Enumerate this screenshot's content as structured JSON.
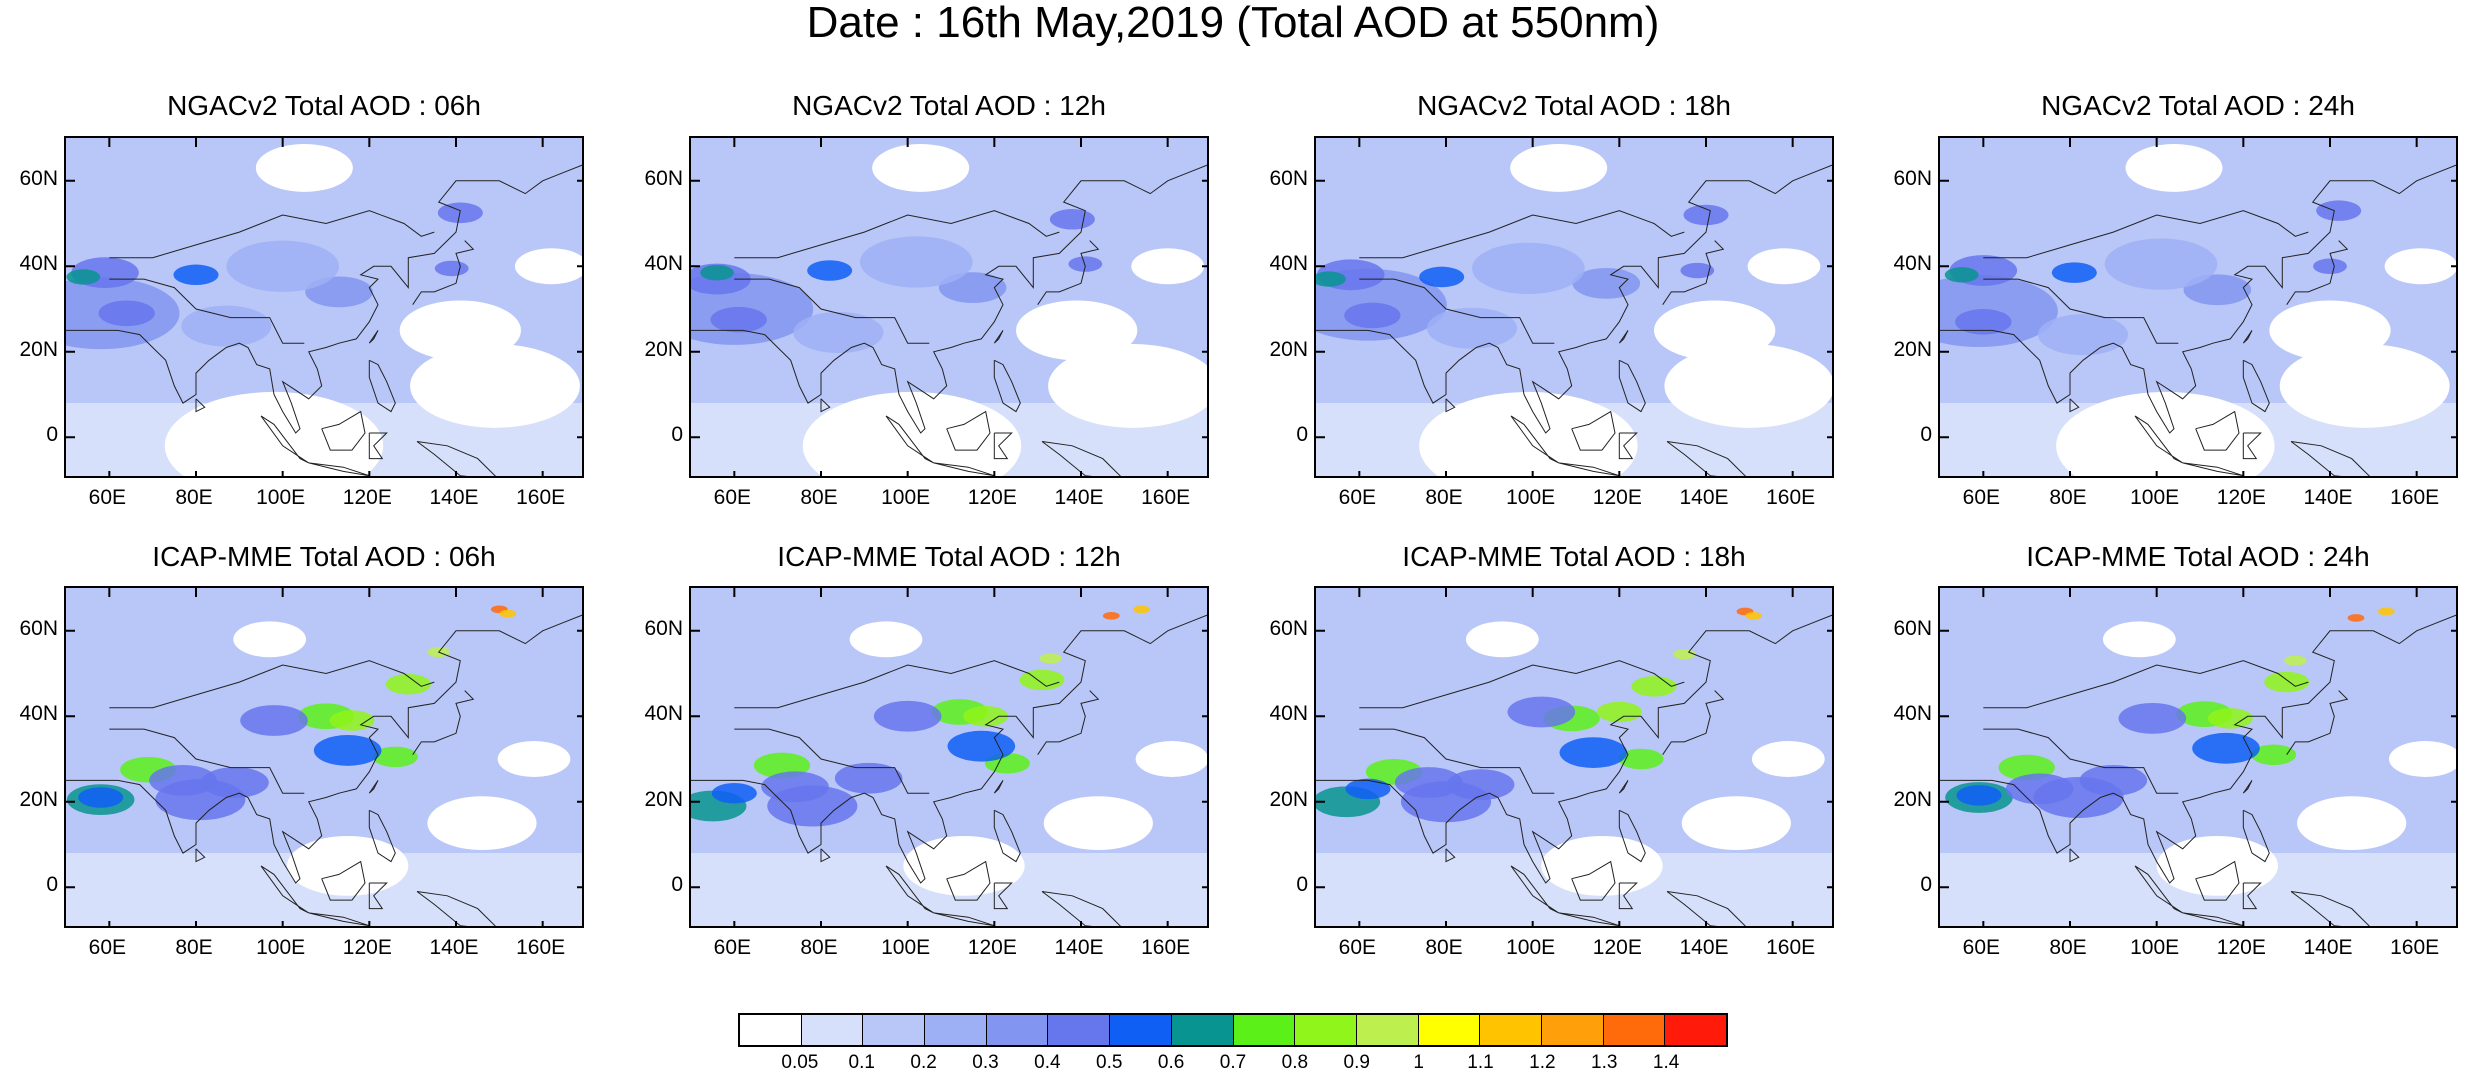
{
  "title": "Date : 16th May,2019 (Total AOD at 550nm)",
  "axes": {
    "lat_ticks": [
      "60N",
      "40N",
      "20N",
      "0"
    ],
    "lat_values": [
      60,
      40,
      20,
      0
    ],
    "lon_ticks": [
      "60E",
      "80E",
      "100E",
      "120E",
      "140E",
      "160E"
    ],
    "lon_values": [
      60,
      80,
      100,
      120,
      140,
      160
    ],
    "lon_range": [
      50,
      170
    ],
    "lat_range": [
      -10,
      70
    ]
  },
  "panels": [
    {
      "title": "NGACv2 Total AOD : 06h",
      "model": "NGACv2",
      "lead": "06h"
    },
    {
      "title": "NGACv2 Total AOD : 12h",
      "model": "NGACv2",
      "lead": "12h"
    },
    {
      "title": "NGACv2 Total AOD : 18h",
      "model": "NGACv2",
      "lead": "18h"
    },
    {
      "title": "NGACv2 Total AOD : 24h",
      "model": "NGACv2",
      "lead": "24h"
    },
    {
      "title": "ICAP-MME Total AOD : 06h",
      "model": "ICAP-MME",
      "lead": "06h"
    },
    {
      "title": "ICAP-MME Total AOD : 12h",
      "model": "ICAP-MME",
      "lead": "12h"
    },
    {
      "title": "ICAP-MME Total AOD : 18h",
      "model": "ICAP-MME",
      "lead": "18h"
    },
    {
      "title": "ICAP-MME Total AOD : 24h",
      "model": "ICAP-MME",
      "lead": "24h"
    }
  ],
  "colorbar": {
    "labels": [
      "0.05",
      "0.1",
      "0.2",
      "0.3",
      "0.4",
      "0.5",
      "0.6",
      "0.7",
      "0.8",
      "0.9",
      "1",
      "1.1",
      "1.2",
      "1.3",
      "1.4"
    ],
    "colors": [
      "#ffffff",
      "#d7e0fb",
      "#b9c6f8",
      "#9db0f5",
      "#8295f0",
      "#6676ec",
      "#0f5ff5",
      "#089490",
      "#5cf019",
      "#8ff51a",
      "#bdf04e",
      "#ffff00",
      "#ffc300",
      "#ff9f0a",
      "#ff6a0a",
      "#ff1a0a"
    ]
  }
}
